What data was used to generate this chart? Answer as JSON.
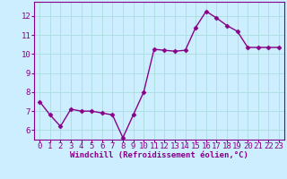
{
  "x": [
    0,
    1,
    2,
    3,
    4,
    5,
    6,
    7,
    8,
    9,
    10,
    11,
    12,
    13,
    14,
    15,
    16,
    17,
    18,
    19,
    20,
    21,
    22,
    23
  ],
  "y": [
    7.5,
    6.8,
    6.2,
    7.1,
    7.0,
    7.0,
    6.9,
    6.8,
    5.6,
    6.8,
    8.0,
    10.25,
    10.2,
    10.15,
    10.2,
    11.4,
    12.25,
    11.9,
    11.5,
    11.2,
    10.35,
    10.35,
    10.35,
    10.35
  ],
  "line_color": "#880088",
  "marker": "D",
  "marker_size": 2.5,
  "bg_color": "#cceeff",
  "grid_color": "#aadddd",
  "xlabel": "Windchill (Refroidissement éolien,°C)",
  "ylim": [
    5.5,
    12.75
  ],
  "xlim": [
    -0.5,
    23.5
  ],
  "yticks": [
    6,
    7,
    8,
    9,
    10,
    11,
    12
  ],
  "xticks": [
    0,
    1,
    2,
    3,
    4,
    5,
    6,
    7,
    8,
    9,
    10,
    11,
    12,
    13,
    14,
    15,
    16,
    17,
    18,
    19,
    20,
    21,
    22,
    23
  ],
  "xlabel_color": "#880088",
  "tick_color": "#880088",
  "axis_color": "#880088",
  "xlabel_fontsize": 6.5,
  "tick_fontsize": 6.5,
  "line_width": 1.0
}
